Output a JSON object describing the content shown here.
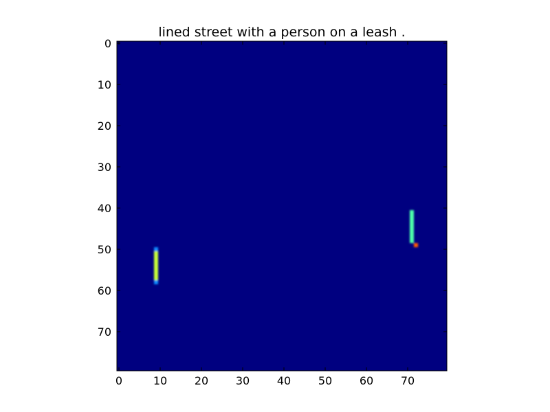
{
  "chart_data": {
    "type": "heatmap",
    "title": "lined street with a person on a leash .",
    "xlabel": "",
    "ylabel": "",
    "xlim": [
      -0.5,
      79.5
    ],
    "ylim": [
      79.5,
      -0.5
    ],
    "x_ticks": [
      0,
      10,
      20,
      30,
      40,
      50,
      60,
      70
    ],
    "y_ticks": [
      0,
      10,
      20,
      30,
      40,
      50,
      60,
      70
    ],
    "y_inverted": true,
    "grid": false,
    "legend": "none",
    "grid_size": [
      80,
      80
    ],
    "colormap": "jet",
    "background_value": 0.0,
    "background_color": "#000080",
    "cells": [
      {
        "name": "left-bar-edge-top",
        "x": 9,
        "y": 50,
        "value": 0.35,
        "color": "#0a8cff"
      },
      {
        "name": "left-bar-core",
        "x": 9,
        "y": [
          51,
          57
        ],
        "value": 0.7,
        "color": "#c8ff37"
      },
      {
        "name": "left-bar-edge-bottom",
        "x": 9,
        "y": 58,
        "value": 0.35,
        "color": "#0a8cff"
      },
      {
        "name": "right-bar-core",
        "x": 71,
        "y": [
          41,
          48
        ],
        "value": 0.55,
        "color": "#4dffaa"
      },
      {
        "name": "right-bar-tip",
        "x": 72,
        "y": 49,
        "value": 0.85,
        "color": "#ff5a00"
      }
    ]
  }
}
